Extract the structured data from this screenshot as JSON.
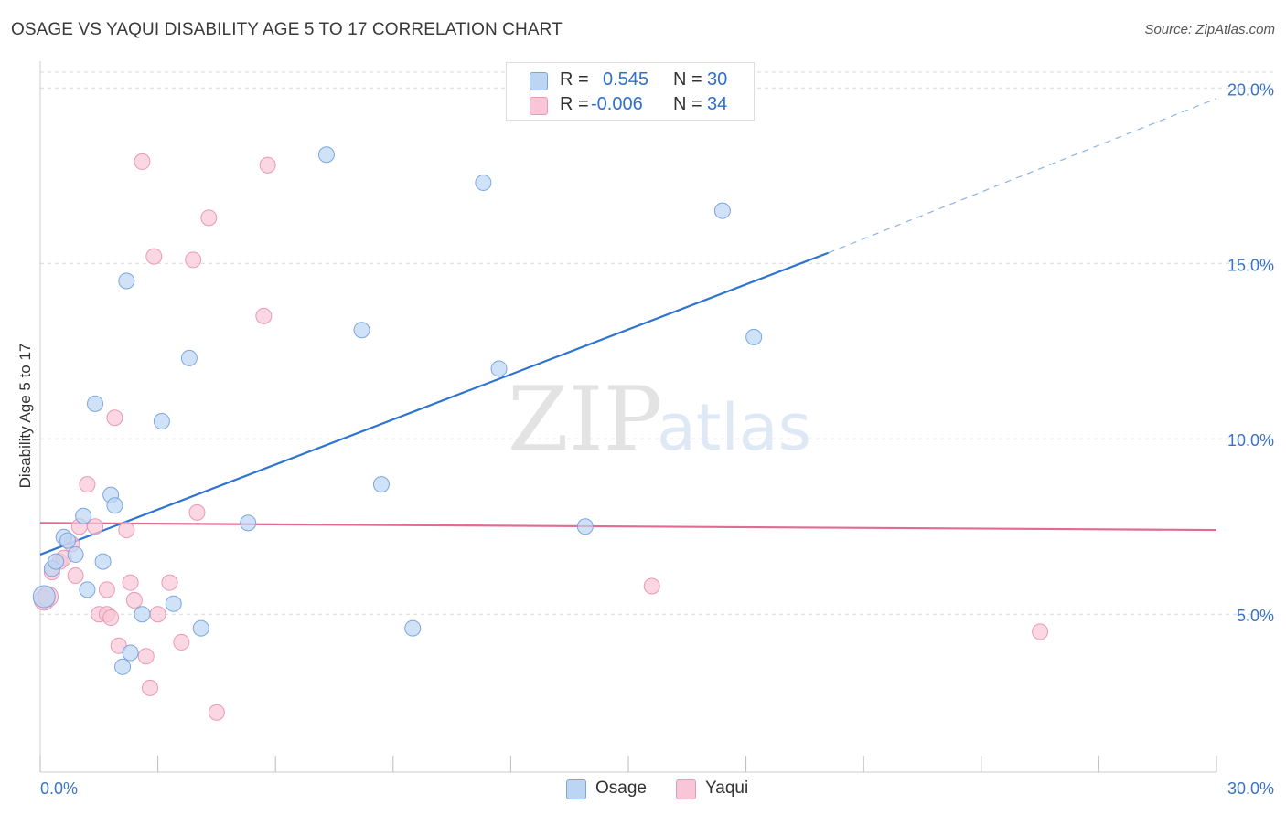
{
  "header": {
    "title": "OSAGE VS YAQUI DISABILITY AGE 5 TO 17 CORRELATION CHART",
    "source": "Source: ZipAtlas.com"
  },
  "watermark": {
    "zip": "ZIP",
    "atlas": "atlas"
  },
  "stats": [
    {
      "r_label": "R =",
      "r_value": "0.545",
      "n_label": "N =",
      "n_value": "30"
    },
    {
      "r_label": "R =",
      "r_value": "-0.006",
      "n_label": "N =",
      "n_value": "34"
    }
  ],
  "legend": {
    "osage": "Osage",
    "yaqui": "Yaqui"
  },
  "colors": {
    "osage_fill": "#bcd5f3",
    "osage_stroke": "#7aa6df",
    "osage_line": "#2f74d0",
    "yaqui_fill": "#f8c6d6",
    "yaqui_stroke": "#e99ab3",
    "yaqui_line": "#e06c92",
    "axis_text": "#3a74c8",
    "grid": "#d8d8d8"
  },
  "chart_data": {
    "type": "scatter",
    "title": "OSAGE VS YAQUI DISABILITY AGE 5 TO 17 CORRELATION CHART",
    "xlabel": "",
    "ylabel": "Disability Age 5 to 17",
    "xlim": [
      0,
      30
    ],
    "ylim": [
      0,
      20
    ],
    "x_tick_labels": [
      "0.0%",
      "30.0%"
    ],
    "y_ticks": [
      5,
      10,
      15,
      20
    ],
    "y_tick_labels": [
      "5.0%",
      "10.0%",
      "15.0%",
      "20.0%"
    ],
    "grid": true,
    "series": [
      {
        "name": "Osage",
        "r": 0.545,
        "n": 30,
        "points": [
          [
            0.1,
            5.5
          ],
          [
            0.3,
            6.3
          ],
          [
            0.4,
            6.5
          ],
          [
            0.6,
            7.2
          ],
          [
            0.7,
            7.1
          ],
          [
            0.9,
            6.7
          ],
          [
            1.1,
            7.8
          ],
          [
            1.2,
            5.7
          ],
          [
            1.4,
            11.0
          ],
          [
            1.6,
            6.5
          ],
          [
            1.8,
            8.4
          ],
          [
            1.9,
            8.1
          ],
          [
            2.1,
            3.5
          ],
          [
            2.2,
            14.5
          ],
          [
            2.3,
            3.9
          ],
          [
            2.6,
            5.0
          ],
          [
            3.1,
            10.5
          ],
          [
            3.4,
            5.3
          ],
          [
            3.8,
            12.3
          ],
          [
            4.1,
            4.6
          ],
          [
            5.3,
            7.6
          ],
          [
            7.3,
            18.1
          ],
          [
            8.2,
            13.1
          ],
          [
            8.7,
            8.7
          ],
          [
            9.5,
            4.6
          ],
          [
            11.3,
            17.3
          ],
          [
            11.7,
            12.0
          ],
          [
            13.9,
            7.5
          ],
          [
            17.4,
            16.5
          ],
          [
            18.2,
            12.9
          ]
        ],
        "trend": {
          "x0": 0,
          "y0": 6.7,
          "x1": 20.1,
          "y1": 15.3,
          "dashed_to_x": 30,
          "dashed_to_y": 19.7
        }
      },
      {
        "name": "Yaqui",
        "r": -0.006,
        "n": 34,
        "points": [
          [
            0.1,
            5.4
          ],
          [
            0.2,
            5.5
          ],
          [
            0.3,
            6.2
          ],
          [
            0.5,
            6.5
          ],
          [
            0.6,
            6.6
          ],
          [
            0.8,
            7.0
          ],
          [
            0.9,
            6.1
          ],
          [
            1.0,
            7.5
          ],
          [
            1.2,
            8.7
          ],
          [
            1.4,
            7.5
          ],
          [
            1.5,
            5.0
          ],
          [
            1.7,
            5.0
          ],
          [
            1.7,
            5.7
          ],
          [
            1.8,
            4.9
          ],
          [
            1.9,
            10.6
          ],
          [
            2.0,
            4.1
          ],
          [
            2.2,
            7.4
          ],
          [
            2.3,
            5.9
          ],
          [
            2.4,
            5.4
          ],
          [
            2.6,
            17.9
          ],
          [
            2.7,
            3.8
          ],
          [
            2.8,
            2.9
          ],
          [
            2.9,
            15.2
          ],
          [
            3.0,
            5.0
          ],
          [
            3.3,
            5.9
          ],
          [
            3.6,
            4.2
          ],
          [
            3.9,
            15.1
          ],
          [
            4.0,
            7.9
          ],
          [
            4.3,
            16.3
          ],
          [
            4.5,
            2.2
          ],
          [
            5.7,
            13.5
          ],
          [
            5.8,
            17.8
          ],
          [
            15.6,
            5.8
          ],
          [
            25.5,
            4.5
          ]
        ],
        "trend": {
          "x0": 0,
          "y0": 7.6,
          "x1": 30,
          "y1": 7.4
        }
      }
    ]
  }
}
